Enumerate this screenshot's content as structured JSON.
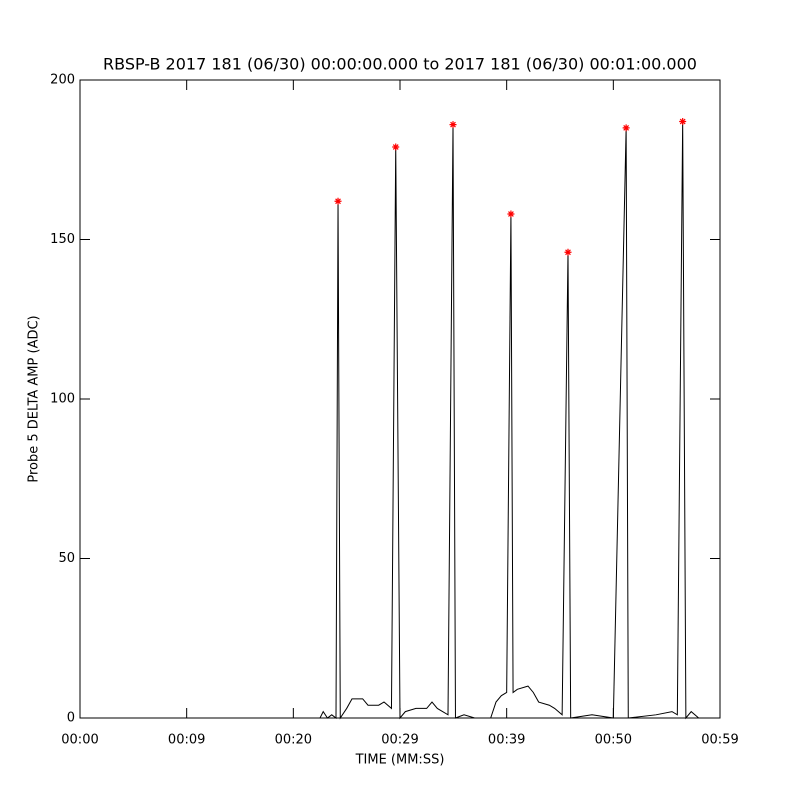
{
  "chart_data": {
    "type": "line",
    "title": "RBSP-B 2017 181 (06/30) 00:00:00.000 to 2017 181 (06/30) 00:01:00.000",
    "x_label": "TIME (MM:SS)",
    "y_label": "Probe 5 DELTA AMP (ADC)",
    "xlim": [
      0,
      60
    ],
    "ylim": [
      0,
      200
    ],
    "xticks": [
      {
        "value": 0,
        "label": "00:00"
      },
      {
        "value": 10,
        "label": "00:09"
      },
      {
        "value": 20,
        "label": "00:20"
      },
      {
        "value": 30,
        "label": "00:29"
      },
      {
        "value": 40,
        "label": "00:39"
      },
      {
        "value": 50,
        "label": "00:50"
      },
      {
        "value": 60,
        "label": "00:59"
      }
    ],
    "yticks": [
      0,
      50,
      100,
      150,
      200
    ],
    "series": [
      {
        "style": "line",
        "color": "#000000",
        "x": [
          0,
          22.5,
          22.8,
          23.2,
          23.6,
          24.0,
          24.19,
          24.4,
          25.0,
          25.5,
          26.5,
          27.0,
          28.0,
          28.5,
          29.2,
          29.6,
          30.0,
          30.5,
          31.5,
          32.5,
          33.0,
          33.5,
          34.5,
          34.97,
          35.2,
          36.0,
          37.0,
          38.5,
          39.0,
          39.5,
          40.0,
          40.4,
          40.6,
          41.0,
          42.0,
          42.5,
          43.0,
          44.0,
          44.5,
          45.2,
          45.75,
          46.0,
          48.0,
          50.0,
          51.2,
          51.4,
          54.0,
          55.5,
          56.0,
          56.5,
          56.8,
          57.3,
          58.0,
          59.0
        ],
        "values": [
          0,
          0,
          2,
          0,
          1,
          0,
          162,
          0,
          3,
          6,
          6,
          4,
          4,
          5,
          3,
          179,
          0,
          2,
          3,
          3,
          5,
          3,
          1,
          186,
          0,
          1,
          0,
          0,
          5,
          7,
          8,
          158,
          8,
          9,
          10,
          8,
          5,
          4,
          3,
          1,
          146,
          0,
          1,
          0,
          185,
          0,
          1,
          2,
          1,
          187,
          0,
          2,
          0,
          0
        ]
      },
      {
        "style": "asterisk",
        "color": "#ff0000",
        "x": [
          24.19,
          29.6,
          34.97,
          40.4,
          45.75,
          51.2,
          56.5
        ],
        "values": [
          162,
          179,
          186,
          158,
          146,
          185,
          187
        ]
      }
    ]
  }
}
